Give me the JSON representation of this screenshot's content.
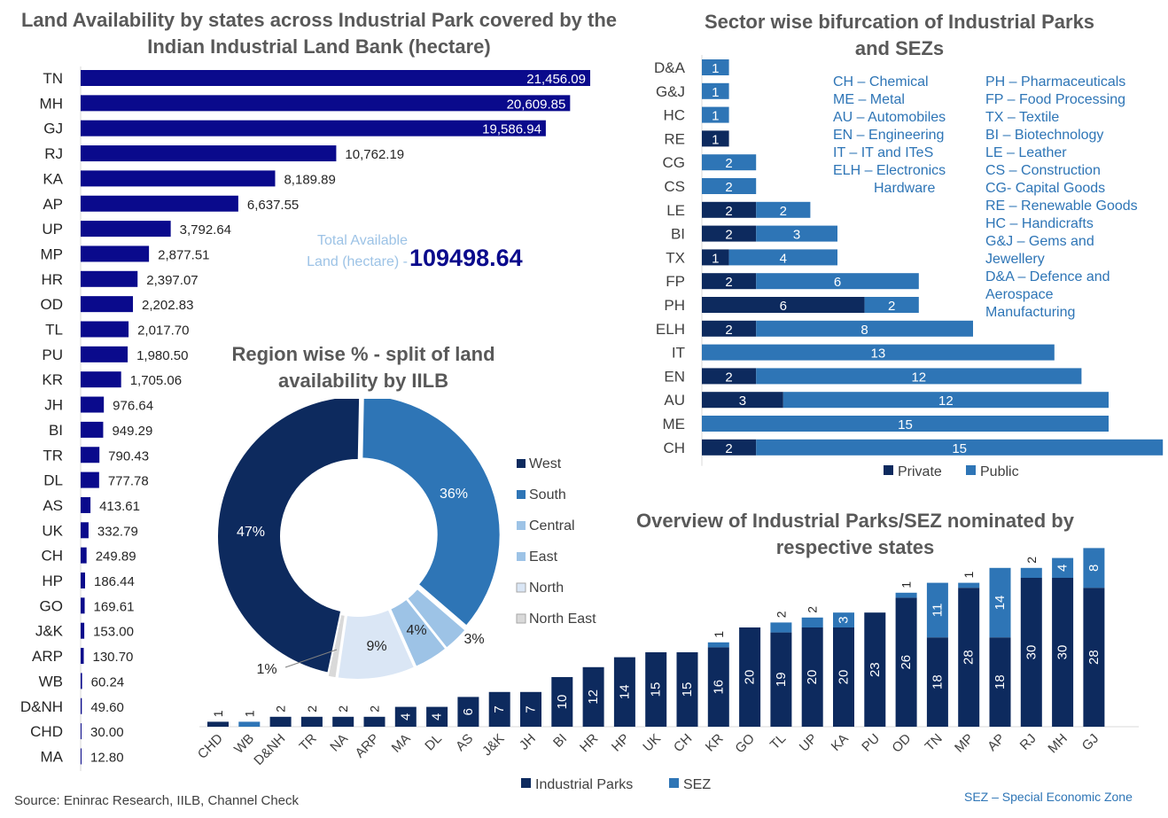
{
  "land": {
    "title": "Land Availability by states across Industrial Park covered by the Indian Industrial Land Bank (hectare)",
    "total_label": "Total Available Land (hectare) -",
    "total_value": "109498.64"
  },
  "region": {
    "title": "Region wise % - split of land availability by IILB"
  },
  "sector": {
    "title": "Sector wise bifurcation of Industrial Parks and SEZs",
    "abbr_left": [
      "CH – Chemical",
      "ME – Metal",
      "AU – Automobiles",
      "EN – Engineering",
      "IT – IT and ITeS",
      "ELH – Electronics",
      "Hardware"
    ],
    "abbr_right": [
      "PH – Pharmaceuticals",
      "FP – Food Processing",
      "TX – Textile",
      "BI – Biotechnology",
      "LE – Leather",
      "CS – Construction",
      "CG- Capital Goods",
      "RE – Renewable Goods",
      "HC – Handicrafts",
      "G&J – Gems and",
      "Jewellery",
      "D&A – Defence and",
      "Aerospace",
      "Manufacturing"
    ]
  },
  "overview": {
    "title": "Overview of Industrial Parks/SEZ nominated by respective states"
  },
  "footer": {
    "source": "Source: Eninrac Research, IILB, Channel Check",
    "sez_note": "SEZ – Special Economic Zone"
  },
  "colors": {
    "dark": "#0a0a8c",
    "navy": "#0d2a5e",
    "blue": "#2e75b6",
    "light": "#9dc3e6",
    "lighter": "#dae6f5",
    "grey": "#d9d9d9",
    "title": "#595959"
  },
  "chart_data": [
    {
      "type": "bar",
      "orientation": "horizontal",
      "title": "Land Availability by states across Industrial Park covered by the Indian Industrial Land Bank (hectare)",
      "categories": [
        "TN",
        "MH",
        "GJ",
        "RJ",
        "KA",
        "AP",
        "UP",
        "MP",
        "HR",
        "OD",
        "TL",
        "PU",
        "KR",
        "JH",
        "BI",
        "TR",
        "DL",
        "AS",
        "UK",
        "CH",
        "HP",
        "GO",
        "J&K",
        "ARP",
        "WB",
        "D&NH",
        "CHD",
        "MA"
      ],
      "values": [
        21456.09,
        20609.85,
        19586.94,
        10762.19,
        8189.89,
        6637.55,
        3792.64,
        2877.51,
        2397.07,
        2202.83,
        2017.7,
        1980.5,
        1705.06,
        976.64,
        949.29,
        790.43,
        777.78,
        413.61,
        332.79,
        249.89,
        186.44,
        169.61,
        153.0,
        130.7,
        60.24,
        49.6,
        30.0,
        12.8
      ],
      "labels": [
        "21,456.09",
        "20,609.85",
        "19,586.94",
        "10,762.19",
        "8,189.89",
        "6,637.55",
        "3,792.64",
        "2,877.51",
        "2,397.07",
        "2,202.83",
        "2,017.70",
        "1,980.50",
        "1,705.06",
        "976.64",
        "949.29",
        "790.43",
        "777.78",
        "413.61",
        "332.79",
        "249.89",
        "186.44",
        "169.61",
        "153.00",
        "130.70",
        "60.24",
        "49.60",
        "30.00",
        "12.80"
      ]
    },
    {
      "type": "pie",
      "title": "Region wise % - split of land availability by IILB",
      "categories": [
        "West",
        "South",
        "Central",
        "East",
        "North",
        "North East"
      ],
      "values": [
        47,
        36,
        3,
        4,
        9,
        1
      ],
      "labels": [
        "47%",
        "36%",
        "3%",
        "4%",
        "9%",
        "1%"
      ]
    },
    {
      "type": "bar",
      "orientation": "horizontal",
      "stacked": true,
      "title": "Sector wise bifurcation of Industrial Parks and SEZs",
      "categories": [
        "D&A",
        "G&J",
        "HC",
        "RE",
        "CG",
        "CS",
        "LE",
        "BI",
        "TX",
        "FP",
        "PH",
        "ELH",
        "IT",
        "EN",
        "AU",
        "ME",
        "CH"
      ],
      "series": [
        {
          "name": "Private",
          "values": [
            0,
            0,
            0,
            1,
            0,
            0,
            2,
            2,
            1,
            2,
            6,
            2,
            0,
            2,
            3,
            0,
            2
          ]
        },
        {
          "name": "Public",
          "values": [
            1,
            1,
            1,
            0,
            2,
            2,
            2,
            3,
            4,
            6,
            2,
            8,
            13,
            12,
            12,
            15,
            15
          ]
        }
      ],
      "legend": "bottom"
    },
    {
      "type": "bar",
      "stacked": true,
      "title": "Overview of Industrial Parks/SEZ nominated by respective states",
      "categories": [
        "CHD",
        "WB",
        "D&NH",
        "TR",
        "NA",
        "ARP",
        "MA",
        "DL",
        "AS",
        "J&K",
        "JH",
        "BI",
        "HR",
        "HP",
        "UK",
        "CH",
        "KR",
        "GO",
        "TL",
        "UP",
        "KA",
        "PU",
        "OD",
        "TN",
        "MP",
        "AP",
        "RJ",
        "MH",
        "GJ"
      ],
      "series": [
        {
          "name": "Industrial Parks",
          "values": [
            1,
            0,
            2,
            2,
            2,
            2,
            4,
            4,
            6,
            7,
            7,
            10,
            12,
            14,
            15,
            15,
            16,
            20,
            19,
            20,
            20,
            23,
            26,
            18,
            28,
            18,
            30,
            30,
            28
          ]
        },
        {
          "name": "SEZ",
          "values": [
            0,
            1,
            0,
            0,
            0,
            0,
            0,
            0,
            0,
            0,
            0,
            0,
            0,
            0,
            0,
            0,
            1,
            0,
            2,
            2,
            3,
            0,
            1,
            11,
            1,
            14,
            2,
            4,
            8
          ]
        }
      ],
      "legend": "bottom"
    }
  ]
}
